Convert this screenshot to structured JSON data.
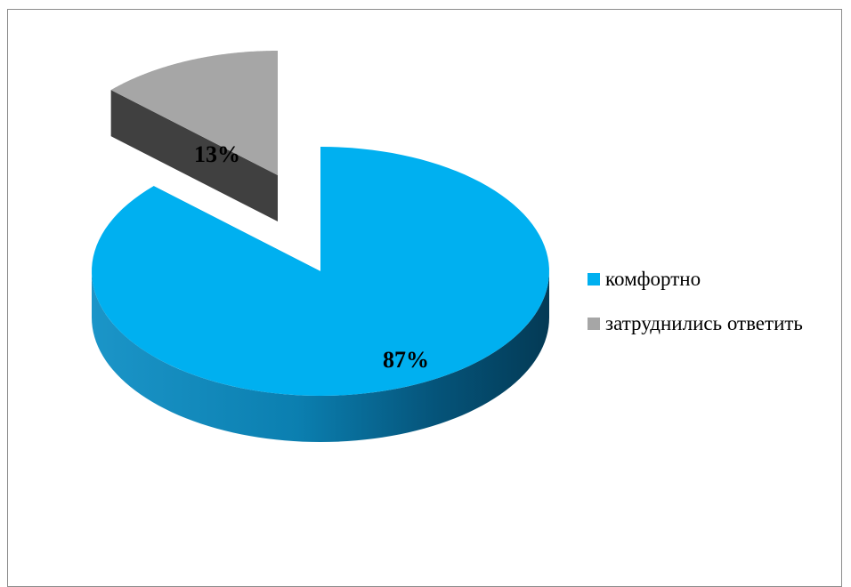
{
  "chart_data": {
    "type": "pie",
    "title": "",
    "style": "3d-exploded",
    "legend_position": "right",
    "slices": [
      {
        "label": "комфортно",
        "value": 87,
        "value_label": "87%",
        "color": "#00b0f0",
        "side_color": "#0a7fb0"
      },
      {
        "label": "затруднились ответить",
        "value": 13,
        "value_label": "13%",
        "color": "#a6a6a6",
        "side_color": "#404040"
      }
    ]
  }
}
